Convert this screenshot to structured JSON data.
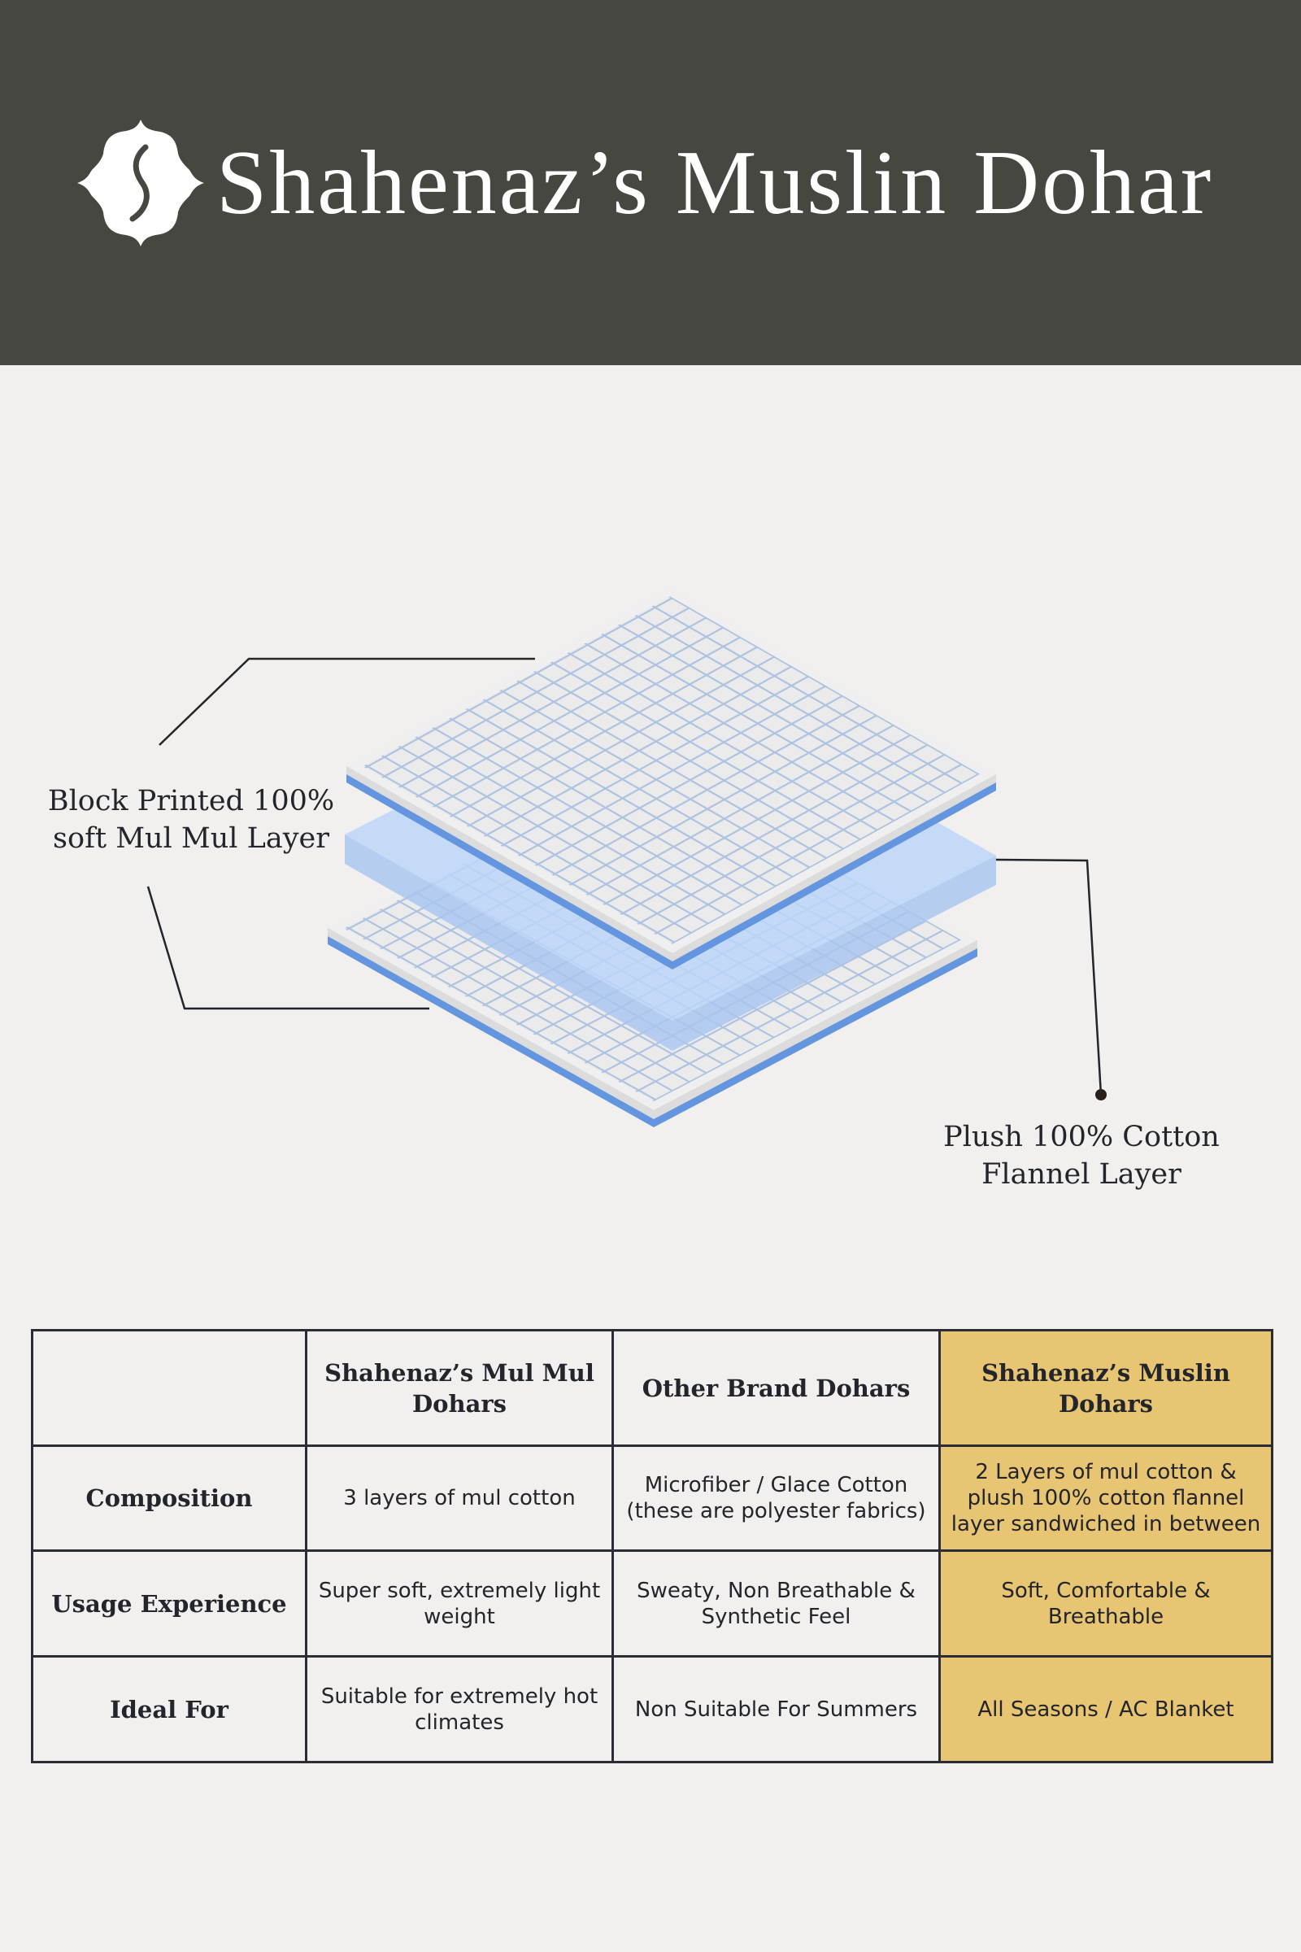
{
  "header": {
    "title": "Shahenaz’s Muslin Dohar",
    "logo_icon": "s-monogram-logo",
    "background": "#474741"
  },
  "illustration": {
    "callouts": [
      {
        "label_line1": "Block Printed 100%",
        "label_line2": "soft Mul Mul Layer"
      },
      {
        "label_line1": "Plush 100% Cotton",
        "label_line2": "Flannel Layer"
      }
    ],
    "colors": {
      "grid": "#adc3e0",
      "edge_blue": "#6496e0",
      "flannel": "#b7d3fa"
    }
  },
  "table": {
    "headers": [
      "",
      "Shahenaz’s Mul Mul Dohars",
      "Other Brand Dohars",
      "Shahenaz’s Muslin Dohars"
    ],
    "rows": [
      {
        "label": "Composition",
        "cells": [
          "3 layers of mul cotton",
          "Microfiber / Glace Cotton (these are polyester fabrics)",
          "2 Layers of mul cotton & plush 100% cotton flannel layer sandwiched in between"
        ]
      },
      {
        "label": "Usage Experience",
        "cells": [
          "Super soft, extremely light weight",
          "Sweaty, Non Breathable & Synthetic Feel",
          "Soft, Comfortable & Breathable"
        ]
      },
      {
        "label": "Ideal For",
        "cells": [
          "Suitable for extremely hot climates",
          "Non Suitable For Summers",
          "All Seasons / AC Blanket"
        ]
      }
    ],
    "highlight_color": "#e8c572"
  }
}
